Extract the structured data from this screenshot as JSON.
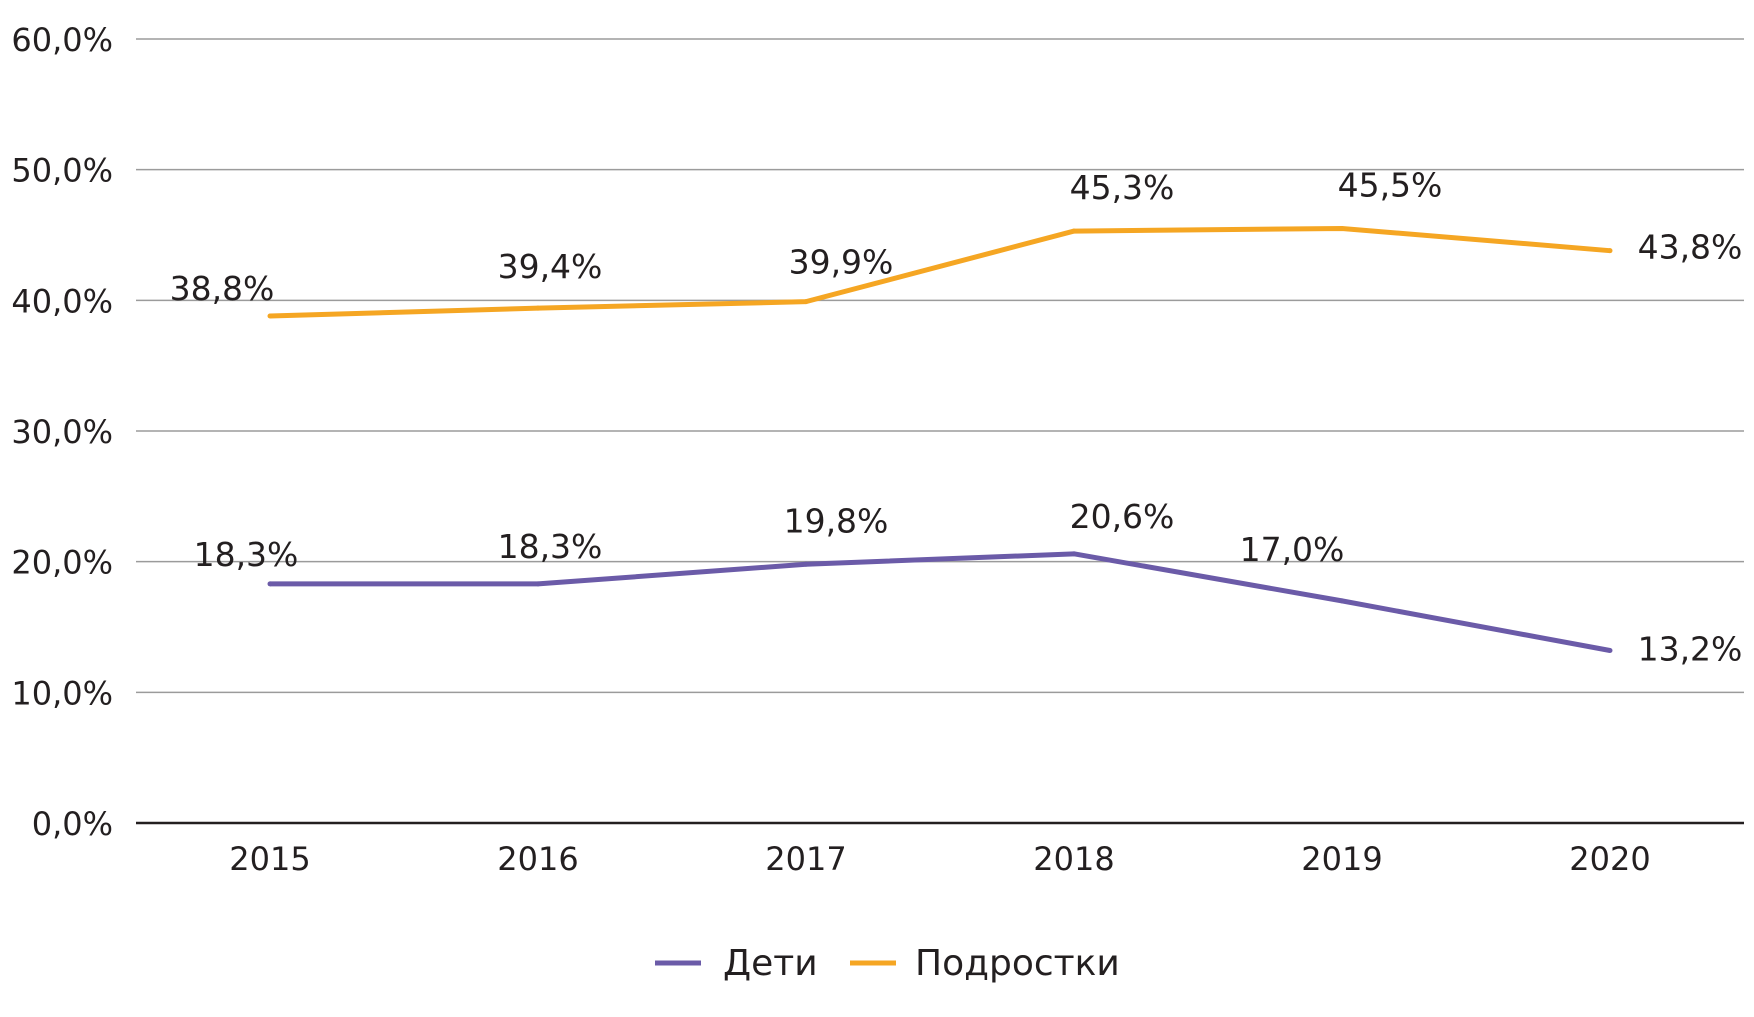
{
  "chart_data": {
    "type": "line",
    "title": "",
    "xlabel": "",
    "ylabel": "",
    "categories": [
      "2015",
      "2016",
      "2017",
      "2018",
      "2019",
      "2020"
    ],
    "ylim": [
      0,
      60
    ],
    "y_ticks": [
      0,
      10,
      20,
      30,
      40,
      50,
      60
    ],
    "y_tick_labels": [
      "0,0%",
      "10,0%",
      "20,0%",
      "30,0%",
      "40,0%",
      "50,0%",
      "60,0%"
    ],
    "grid": true,
    "legend_position": "bottom-center",
    "series": [
      {
        "name": "Дети",
        "color": "#6b5ba8",
        "values": [
          18.3,
          18.3,
          19.8,
          20.6,
          17.0,
          13.2
        ],
        "labels": [
          "18,3%",
          "18,3%",
          "19,8%",
          "20,6%",
          "17,0%",
          "13,2%"
        ]
      },
      {
        "name": "Подростки",
        "color": "#f5a623",
        "values": [
          38.8,
          39.4,
          39.9,
          45.3,
          45.5,
          43.8
        ],
        "labels": [
          "38,8%",
          "39,4%",
          "39,9%",
          "45,3%",
          "45,5%",
          "43,8%"
        ]
      }
    ]
  }
}
